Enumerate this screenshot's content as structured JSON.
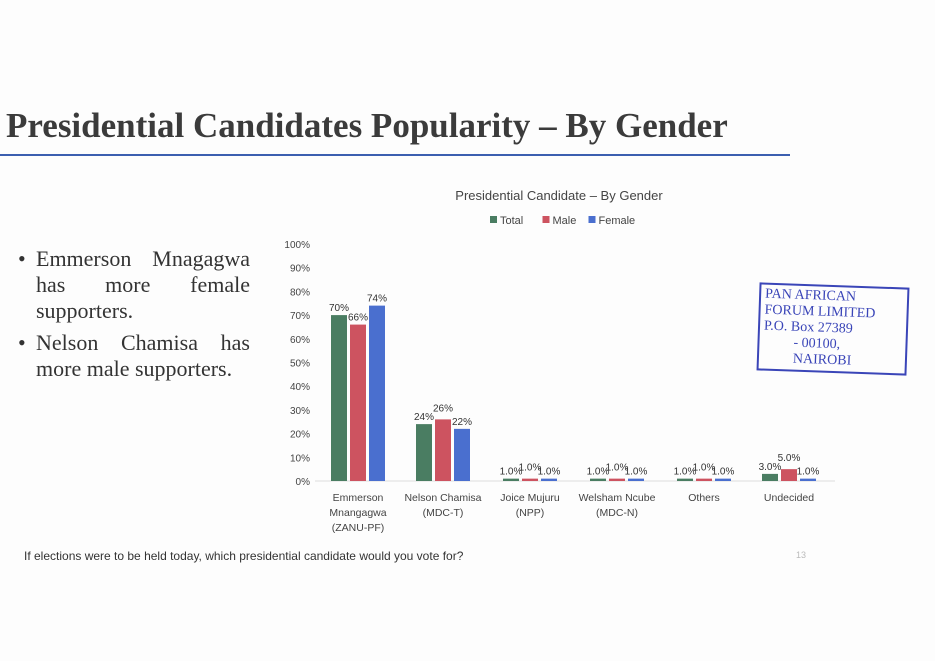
{
  "slide": {
    "title": "Presidential Candidates Popularity – By Gender",
    "bullets": [
      "Emmerson Mnagagwa has more female supporters.",
      "Nelson Chamisa has more male supporters."
    ],
    "footer_question": "If elections were to be held today, which presidential candidate would you vote for?",
    "page_number": "13",
    "stamp": {
      "line1": "PAN AFRICAN",
      "line2": "FORUM LIMITED",
      "line3": "P.O. Box 27389",
      "line4": "- 00100,",
      "line5": "NAIROBI"
    }
  },
  "chart_data": {
    "type": "bar",
    "title": "Presidential Candidate – By Gender",
    "categories": [
      [
        "Emmerson",
        "Mnangagwa",
        "(ZANU-PF)"
      ],
      [
        "Nelson Chamisa",
        "(MDC-T)"
      ],
      [
        "Joice Mujuru",
        "(NPP)"
      ],
      [
        "Welsham Ncube",
        "(MDC-N)"
      ],
      [
        "Others"
      ],
      [
        "Undecided"
      ]
    ],
    "series": [
      {
        "name": "Total",
        "color": "#4a7d62",
        "values": [
          70,
          24,
          1,
          1,
          1,
          3
        ],
        "labels": [
          "70%",
          "24%",
          "1.0%",
          "1.0%",
          "1.0%",
          "3.0%"
        ]
      },
      {
        "name": "Male",
        "color": "#cd5360",
        "values": [
          66,
          26,
          1,
          1,
          1,
          5
        ],
        "labels": [
          "66%",
          "26%",
          "1.0%",
          "1.0%",
          "1.0%",
          "5.0%"
        ]
      },
      {
        "name": "Female",
        "color": "#4a6fcf",
        "values": [
          74,
          22,
          1,
          1,
          1,
          1
        ],
        "labels": [
          "74%",
          "22%",
          "1.0%",
          "1.0%",
          "1.0%",
          "1.0%"
        ]
      }
    ],
    "yticks": [
      "0%",
      "10%",
      "20%",
      "30%",
      "40%",
      "50%",
      "60%",
      "70%",
      "80%",
      "90%",
      "100%"
    ],
    "ylim": [
      0,
      100
    ],
    "grid": false,
    "legend": "top-center"
  }
}
